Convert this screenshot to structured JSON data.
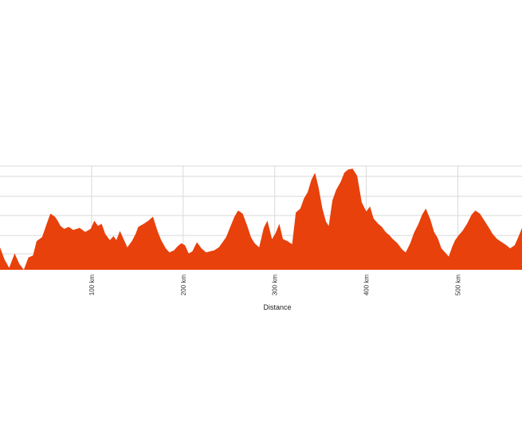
{
  "chart_data": {
    "type": "area",
    "title": "",
    "xlabel": "Distance",
    "ylabel": "",
    "x_unit": "km",
    "xlim": [
      0,
      570
    ],
    "ylim": [
      0,
      1
    ],
    "x_ticks": [
      {
        "value": 100,
        "label": "100 km"
      },
      {
        "value": 200,
        "label": "200 km"
      },
      {
        "value": 300,
        "label": "300 km"
      },
      {
        "value": 400,
        "label": "400 km"
      },
      {
        "value": 500,
        "label": "500 km"
      }
    ],
    "grid": true,
    "legend": "none",
    "fill_color": "#e8410b",
    "series": [
      {
        "x": [
          0,
          5,
          10,
          16,
          21,
          26,
          31,
          36,
          40,
          46,
          51,
          55,
          60,
          63,
          66,
          70,
          75,
          80,
          87,
          93,
          99,
          103,
          107,
          111,
          115,
          120,
          124,
          127,
          131,
          135,
          139,
          144,
          148,
          151,
          157,
          162,
          167,
          172,
          176,
          181,
          185,
          190,
          194,
          198,
          202,
          206,
          210,
          215,
          220,
          225,
          229,
          234,
          239,
          243,
          247,
          251,
          256,
          260,
          265,
          270,
          274,
          278,
          283,
          288,
          292,
          297,
          301,
          305,
          309,
          314,
          319,
          323,
          328,
          332,
          336,
          340,
          344,
          348,
          352,
          356,
          359,
          363,
          367,
          372,
          376,
          380,
          385,
          390,
          395,
          400,
          404,
          408,
          413,
          417,
          421,
          425,
          429,
          434,
          439,
          443,
          448,
          452,
          457,
          461,
          465,
          470,
          474,
          478,
          482,
          486,
          490,
          494,
          497,
          501,
          505,
          510,
          515,
          519,
          524,
          529,
          534,
          538,
          543,
          548,
          553,
          557,
          562,
          566,
          570
        ],
        "y": [
          0.22,
          0.1,
          0.02,
          0.16,
          0.06,
          0.0,
          0.12,
          0.14,
          0.28,
          0.32,
          0.45,
          0.55,
          0.52,
          0.48,
          0.43,
          0.4,
          0.42,
          0.39,
          0.41,
          0.37,
          0.4,
          0.48,
          0.43,
          0.45,
          0.35,
          0.29,
          0.33,
          0.29,
          0.38,
          0.3,
          0.22,
          0.28,
          0.35,
          0.42,
          0.45,
          0.48,
          0.52,
          0.38,
          0.29,
          0.21,
          0.17,
          0.19,
          0.23,
          0.26,
          0.24,
          0.16,
          0.18,
          0.27,
          0.21,
          0.17,
          0.18,
          0.19,
          0.22,
          0.27,
          0.32,
          0.41,
          0.52,
          0.58,
          0.55,
          0.43,
          0.32,
          0.26,
          0.22,
          0.41,
          0.48,
          0.3,
          0.36,
          0.45,
          0.3,
          0.28,
          0.25,
          0.56,
          0.6,
          0.7,
          0.76,
          0.88,
          0.95,
          0.8,
          0.6,
          0.47,
          0.43,
          0.68,
          0.78,
          0.86,
          0.95,
          0.98,
          0.99,
          0.92,
          0.66,
          0.57,
          0.62,
          0.5,
          0.45,
          0.42,
          0.37,
          0.34,
          0.3,
          0.26,
          0.2,
          0.17,
          0.26,
          0.36,
          0.45,
          0.54,
          0.6,
          0.49,
          0.37,
          0.31,
          0.21,
          0.17,
          0.13,
          0.23,
          0.29,
          0.34,
          0.38,
          0.45,
          0.54,
          0.58,
          0.55,
          0.48,
          0.41,
          0.35,
          0.3,
          0.27,
          0.24,
          0.21,
          0.24,
          0.32,
          0.41
        ],
        "note": ""
      }
    ]
  }
}
